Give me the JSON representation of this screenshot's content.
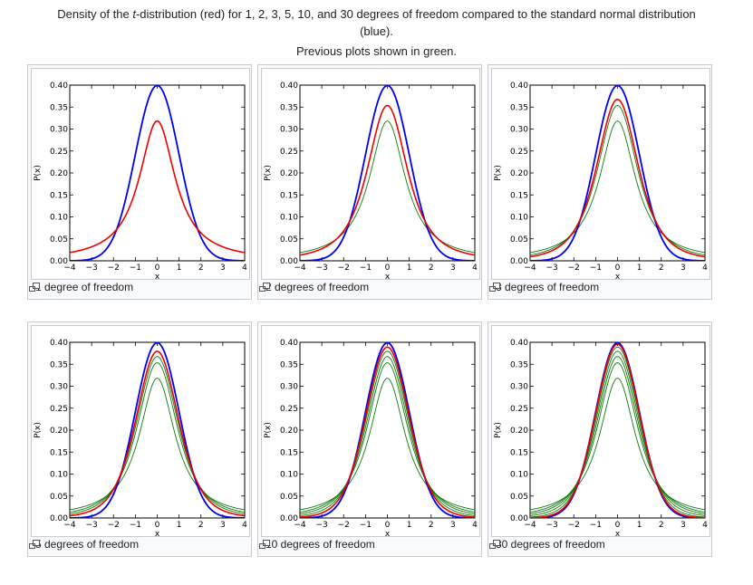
{
  "caption": {
    "line1_pre": "Density of the ",
    "line1_t": "t",
    "line1_post": "-distribution (red) for 1, 2, 3, 5, 10, and 30 degrees of freedom compared to the standard normal distribution",
    "line2": "(blue).",
    "line3": "Previous plots shown in green."
  },
  "colors": {
    "normal": "#0000ee",
    "current": "#ee0000",
    "previous": "#0d7a0d"
  },
  "panels": [
    {
      "caption": "1 degree of freedom",
      "df": 1,
      "previous_df": []
    },
    {
      "caption": "2 degrees of freedom",
      "df": 2,
      "previous_df": [
        1
      ]
    },
    {
      "caption": "3 degrees of freedom",
      "df": 3,
      "previous_df": [
        1,
        2
      ]
    },
    {
      "caption": "5 degrees of freedom",
      "df": 5,
      "previous_df": [
        1,
        2,
        3
      ]
    },
    {
      "caption": "10 degrees of freedom",
      "df": 10,
      "previous_df": [
        1,
        2,
        3,
        5
      ]
    },
    {
      "caption": "30 degrees of freedom",
      "df": 30,
      "previous_df": [
        1,
        2,
        3,
        5,
        10
      ]
    }
  ],
  "chart_data": {
    "type": "line",
    "xlabel": "x",
    "ylabel": "P(x)",
    "xlim": [
      -4,
      4
    ],
    "ylim": [
      0,
      0.4
    ],
    "x_ticks": [
      "−4",
      "−3",
      "−2",
      "−1",
      "0",
      "1",
      "2",
      "3",
      "4"
    ],
    "y_ticks": [
      "0.00",
      "0.05",
      "0.10",
      "0.15",
      "0.20",
      "0.25",
      "0.30",
      "0.35",
      "0.40"
    ],
    "x": [
      -4,
      -3,
      -2,
      -1,
      0,
      1,
      2,
      3,
      4
    ],
    "series": [
      {
        "values": [
          0.0001,
          0.0044,
          0.054,
          0.242,
          0.399,
          0.242,
          0.054,
          0.0044,
          0.0001
        ]
      },
      {
        "values": [
          0.0187,
          0.0318,
          0.0637,
          0.159,
          0.318,
          0.159,
          0.0637,
          0.0318,
          0.0187
        ]
      },
      {
        "values": [
          0.0131,
          0.0274,
          0.068,
          0.193,
          0.354,
          0.193,
          0.068,
          0.0274,
          0.0131
        ]
      },
      {
        "values": [
          0.0092,
          0.023,
          0.0675,
          0.207,
          0.368,
          0.207,
          0.0675,
          0.023,
          0.0092
        ]
      },
      {
        "values": [
          0.0051,
          0.0173,
          0.0651,
          0.22,
          0.38,
          0.22,
          0.0651,
          0.0173,
          0.0051
        ]
      },
      {
        "values": [
          0.002,
          0.0114,
          0.0611,
          0.23,
          0.389,
          0.23,
          0.0611,
          0.0114,
          0.002
        ]
      },
      {
        "values": [
          0.0005,
          0.0068,
          0.0567,
          0.238,
          0.396,
          0.238,
          0.0567,
          0.0068,
          0.0005
        ]
      }
    ]
  }
}
